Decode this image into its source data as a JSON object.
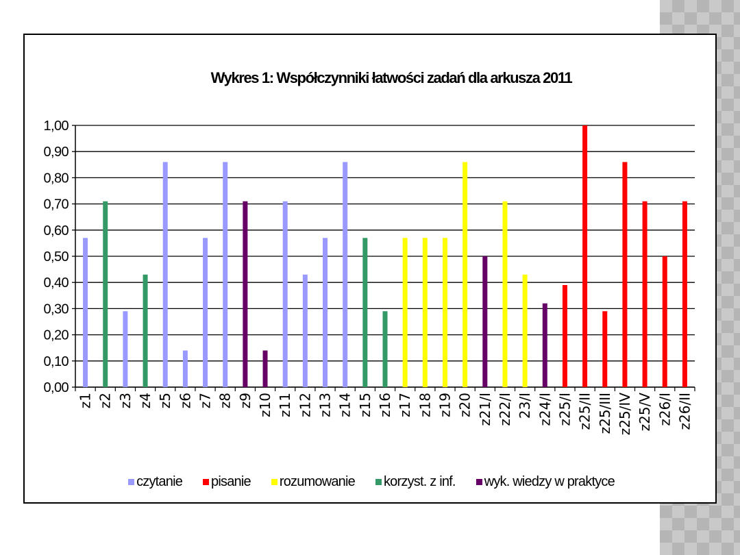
{
  "chart_data": {
    "type": "bar",
    "title": "Wykres 1: Współczynniki łatwości zadań dla arkusza 2011",
    "xlabel": "",
    "ylabel": "",
    "ylim": [
      0,
      1
    ],
    "yticks": [
      "0,00",
      "0,10",
      "0,20",
      "0,30",
      "0,40",
      "0,50",
      "0,60",
      "0,70",
      "0,80",
      "0,90",
      "1,00"
    ],
    "grid": true,
    "legend_position": "bottom",
    "categories": [
      "z1",
      "z2",
      "z3",
      "z4",
      "z5",
      "z6",
      "z7",
      "z8",
      "z9",
      "z10",
      "z11",
      "z12",
      "z13",
      "z14",
      "z15",
      "z16",
      "z17",
      "z18",
      "z19",
      "z20",
      "z21/I",
      "z22/I",
      "23/I",
      "z24/I",
      "z25/I",
      "z25/II",
      "z25/III",
      "z25/IV",
      "z25/V",
      "z26/I",
      "z26/II"
    ],
    "series": [
      {
        "name": "czytanie",
        "color": "#9999ff",
        "values": [
          0.57,
          null,
          0.29,
          null,
          0.86,
          0.14,
          0.57,
          0.86,
          null,
          null,
          0.71,
          0.43,
          0.57,
          0.86,
          null,
          null,
          null,
          null,
          null,
          null,
          null,
          null,
          null,
          null,
          null,
          null,
          null,
          null,
          null,
          null,
          null
        ]
      },
      {
        "name": "pisanie",
        "color": "#ff0000",
        "values": [
          null,
          null,
          null,
          null,
          null,
          null,
          null,
          null,
          null,
          null,
          null,
          null,
          null,
          null,
          null,
          null,
          null,
          null,
          null,
          null,
          null,
          null,
          null,
          null,
          0.39,
          1.0,
          0.29,
          0.86,
          0.71,
          0.5,
          0.71
        ]
      },
      {
        "name": "rozumowanie",
        "color": "#ffff00",
        "values": [
          null,
          null,
          null,
          null,
          null,
          null,
          null,
          null,
          null,
          null,
          null,
          null,
          null,
          null,
          null,
          null,
          0.57,
          0.57,
          0.57,
          0.86,
          null,
          0.71,
          0.43,
          null,
          null,
          null,
          null,
          null,
          null,
          null,
          null
        ]
      },
      {
        "name": "korzyst. z inf.",
        "color": "#339966",
        "values": [
          null,
          0.71,
          null,
          0.43,
          null,
          null,
          null,
          null,
          null,
          null,
          null,
          null,
          null,
          null,
          0.57,
          0.29,
          null,
          null,
          null,
          null,
          null,
          null,
          null,
          null,
          null,
          null,
          null,
          null,
          null,
          null,
          null
        ]
      },
      {
        "name": "wyk. wiedzy w praktyce",
        "color": "#660066",
        "values": [
          null,
          null,
          null,
          null,
          null,
          null,
          null,
          null,
          0.71,
          0.14,
          null,
          null,
          null,
          null,
          null,
          null,
          null,
          null,
          null,
          null,
          0.5,
          null,
          null,
          0.32,
          null,
          null,
          null,
          null,
          null,
          null,
          null
        ]
      }
    ]
  }
}
